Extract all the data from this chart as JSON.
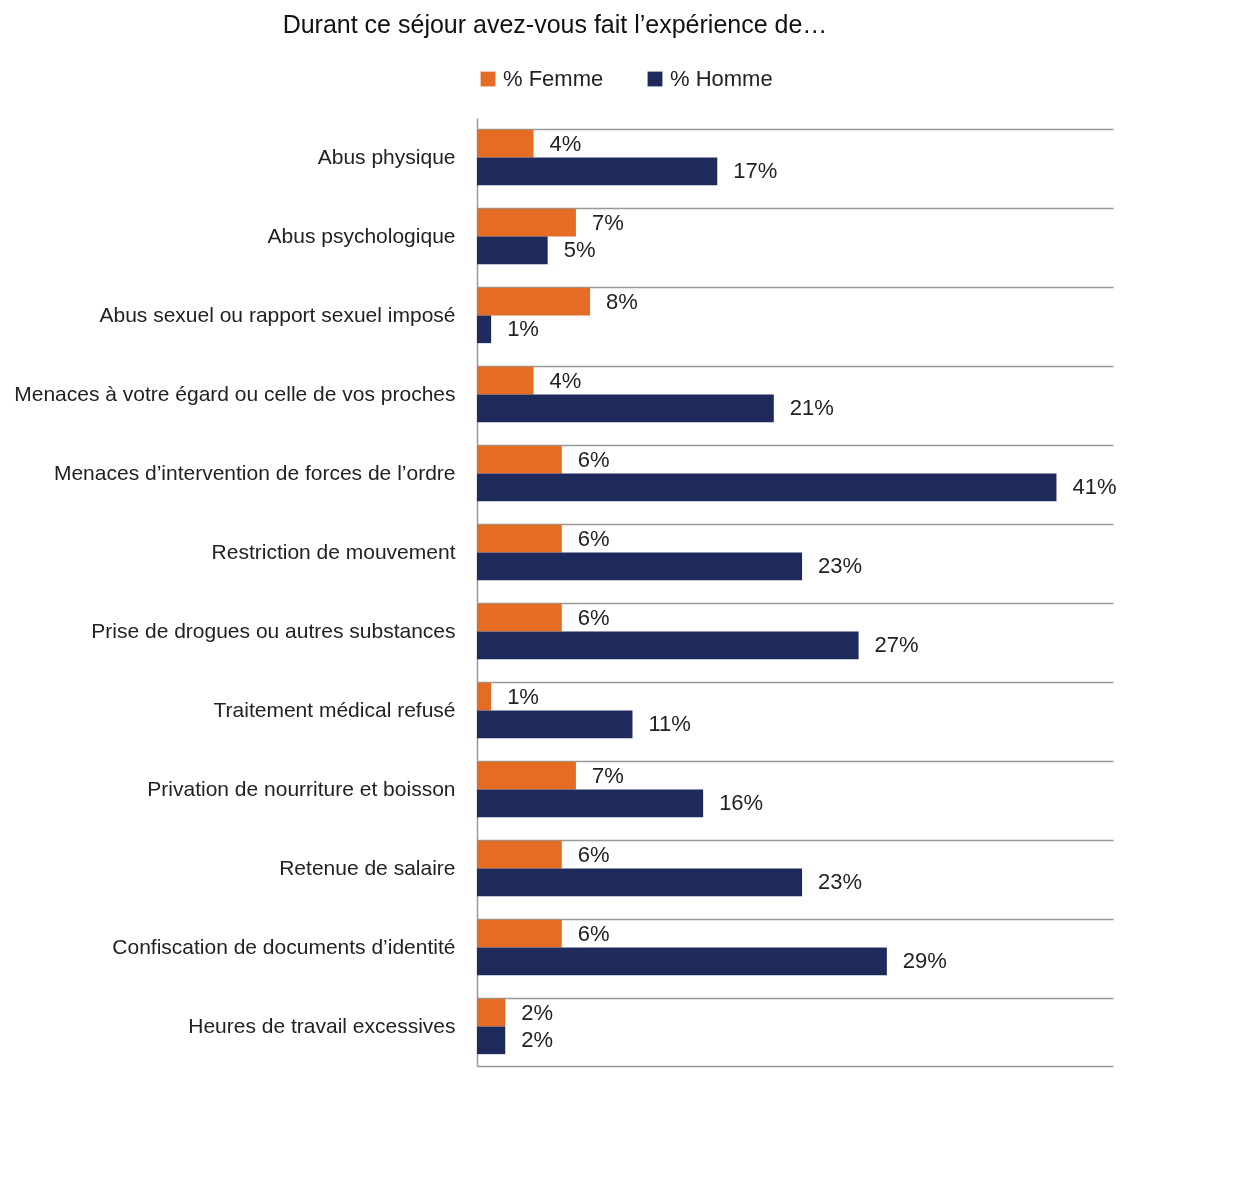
{
  "chart_data": {
    "type": "bar",
    "orientation": "horizontal",
    "title": "Durant ce séjour avez-vous fait l’expérience de…",
    "categories": [
      "Abus physique",
      "Abus psychologique",
      "Abus sexuel ou rapport sexuel imposé",
      "Menaces à votre égard ou celle de vos proches",
      "Menaces d’intervention de forces de l’ordre",
      "Restriction de mouvement",
      "Prise de drogues ou autres substances",
      "Traitement médical refusé",
      "Privation de nourriture et boisson",
      "Retenue de salaire",
      "Confiscation de documents d’identité",
      "Heures de travail excessives"
    ],
    "series": [
      {
        "name": "% Femme",
        "color": "#e46c25",
        "values": [
          4,
          7,
          8,
          4,
          6,
          6,
          6,
          1,
          7,
          6,
          6,
          2
        ],
        "value_labels": [
          "4%",
          "7%",
          "8%",
          "4%",
          "6%",
          "6%",
          "6%",
          "1%",
          "7%",
          "6%",
          "6%",
          "2%"
        ]
      },
      {
        "name": "% Homme",
        "color": "#1f2a5c",
        "values": [
          17,
          5,
          1,
          21,
          41,
          23,
          27,
          11,
          16,
          23,
          29,
          2
        ],
        "value_labels": [
          "17%",
          "5%",
          "1%",
          "21%",
          "41%",
          "23%",
          "27%",
          "11%",
          "16%",
          "23%",
          "29%",
          "2%"
        ]
      }
    ],
    "xlim": [
      0,
      45
    ],
    "grid": "y",
    "legend": "top"
  }
}
